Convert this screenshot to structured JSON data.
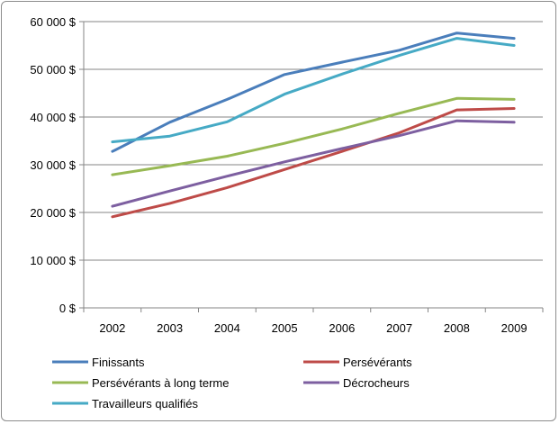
{
  "chart_data": {
    "type": "line",
    "title": "",
    "xlabel": "",
    "ylabel": "",
    "categories": [
      "2002",
      "2003",
      "2004",
      "2005",
      "2006",
      "2007",
      "2008",
      "2009"
    ],
    "ylim": [
      0,
      60000
    ],
    "y_ticks": [
      0,
      10000,
      20000,
      30000,
      40000,
      50000,
      60000
    ],
    "y_tick_labels": [
      "0 $",
      "10 000 $",
      "20 000 $",
      "30 000 $",
      "40 000 $",
      "50 000 $",
      "60 000 $"
    ],
    "grid": true,
    "legend_position": "bottom",
    "series": [
      {
        "name": "Finissants",
        "color": "#4a7ebb",
        "values": [
          32800,
          38900,
          43700,
          48900,
          51500,
          54000,
          57600,
          56500
        ]
      },
      {
        "name": "Persévérants",
        "color": "#be4b48",
        "values": [
          19100,
          21900,
          25200,
          29000,
          32800,
          36700,
          41500,
          41800
        ]
      },
      {
        "name": "Persévérants à long terme",
        "color": "#98b954",
        "values": [
          27900,
          29800,
          31800,
          34500,
          37500,
          40800,
          43900,
          43700
        ]
      },
      {
        "name": "Décrocheurs",
        "color": "#7d5fa0",
        "values": [
          21300,
          24500,
          27600,
          30600,
          33400,
          36100,
          39200,
          38900
        ]
      },
      {
        "name": "Travailleurs qualifiés",
        "color": "#46aac5",
        "values": [
          34800,
          36000,
          39000,
          44800,
          49000,
          52900,
          56500,
          55000
        ]
      }
    ]
  }
}
